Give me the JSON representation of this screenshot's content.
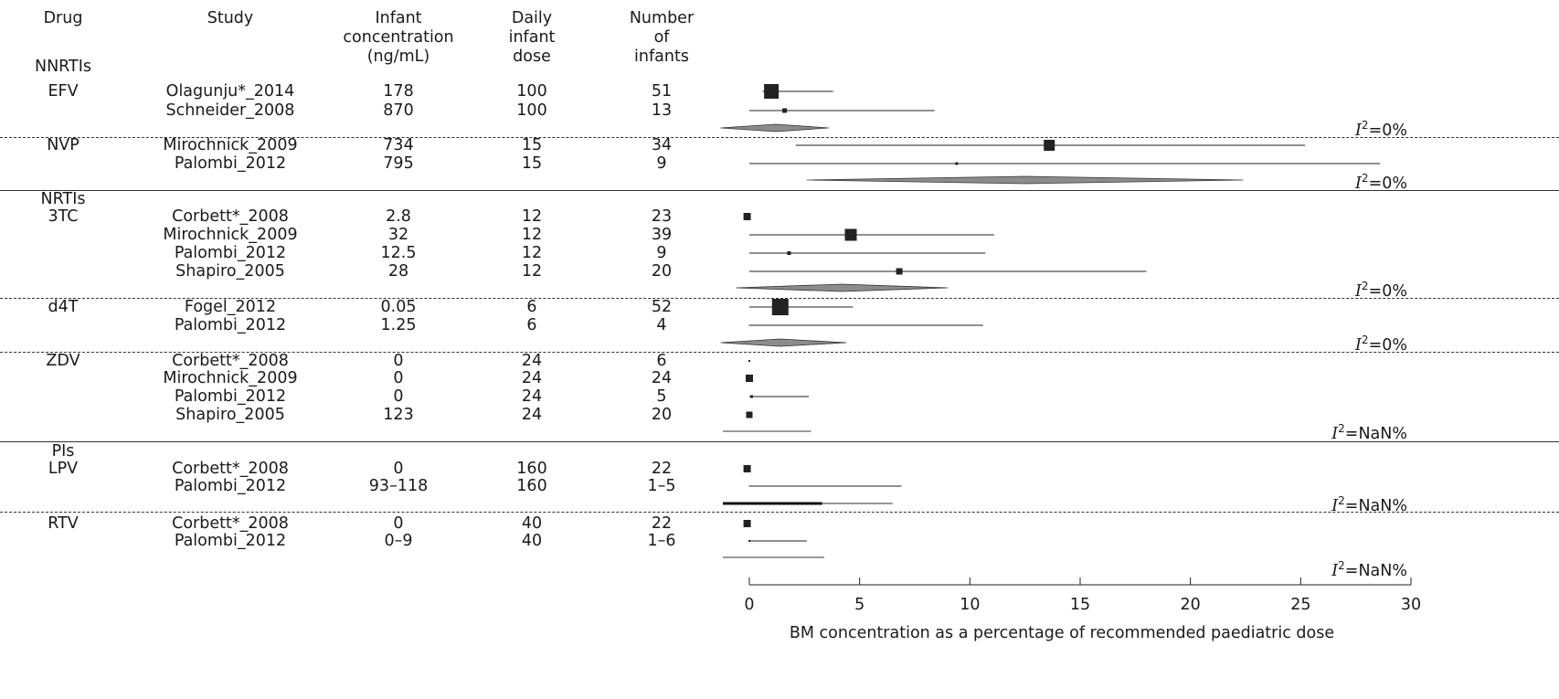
{
  "headers": {
    "drug": "Drug",
    "study": "Study",
    "conc": [
      "Infant",
      "concentration",
      "(ng/mL)"
    ],
    "dose": [
      "Daily",
      "infant",
      "dose"
    ],
    "n": [
      "Number",
      "of",
      "infants"
    ]
  },
  "groups": [
    {
      "class_label": "NNRTIs",
      "drug": "EFV",
      "i2": "=0%",
      "pooled": {
        "lo": -1.3,
        "est": 1.2,
        "hi": 3.6
      },
      "rows": [
        {
          "study": "Olagunju*_2014",
          "conc": "178",
          "dose": "100",
          "n": "51",
          "est": 1.0,
          "lo": 0.6,
          "hi": 3.8,
          "size": 16
        },
        {
          "study": "Schneider_2008",
          "conc": "870",
          "dose": "100",
          "n": "13",
          "est": 1.6,
          "lo": 0.0,
          "hi": 8.4,
          "size": 5
        }
      ]
    },
    {
      "class_label": "",
      "drug": "NVP",
      "i2": "=0%",
      "pooled": {
        "lo": 2.6,
        "est": 12.5,
        "hi": 22.4
      },
      "rows": [
        {
          "study": "Mirochnick_2009",
          "conc": "734",
          "dose": "15",
          "n": "34",
          "est": 13.6,
          "lo": 2.1,
          "hi": 25.2,
          "size": 12
        },
        {
          "study": "Palombi_2012",
          "conc": "795",
          "dose": "15",
          "n": "9",
          "est": 9.4,
          "lo": 0.0,
          "hi": 28.6,
          "size": 3
        }
      ]
    },
    {
      "class_label": "NRTIs",
      "drug": "3TC",
      "i2": "=0%",
      "pooled": {
        "lo": -0.6,
        "est": 4.2,
        "hi": 9.0
      },
      "rows": [
        {
          "study": "Corbett*_2008",
          "conc": "2.8",
          "dose": "12",
          "n": "23",
          "est": -0.1,
          "lo": -0.1,
          "hi": -0.1,
          "size": 8
        },
        {
          "study": "Mirochnick_2009",
          "conc": "32",
          "dose": "12",
          "n": "39",
          "est": 4.6,
          "lo": 0.0,
          "hi": 11.1,
          "size": 13
        },
        {
          "study": "Palombi_2012",
          "conc": "12.5",
          "dose": "12",
          "n": "9",
          "est": 1.8,
          "lo": 0.0,
          "hi": 10.7,
          "size": 4
        },
        {
          "study": "Shapiro_2005",
          "conc": "28",
          "dose": "12",
          "n": "20",
          "est": 6.8,
          "lo": 0.0,
          "hi": 18.0,
          "size": 7
        }
      ]
    },
    {
      "class_label": "",
      "drug": "d4T",
      "i2": "=0%",
      "pooled": {
        "lo": -1.3,
        "est": 1.4,
        "hi": 4.4
      },
      "rows": [
        {
          "study": "Fogel_2012",
          "conc": "0.05",
          "dose": "6",
          "n": "52",
          "est": 1.4,
          "lo": 0.0,
          "hi": 4.7,
          "size": 18
        },
        {
          "study": "Palombi_2012",
          "conc": "1.25",
          "dose": "6",
          "n": "4",
          "est": 0.0,
          "lo": 0.0,
          "hi": 10.6,
          "size": 1
        }
      ]
    },
    {
      "class_label": "",
      "drug": "ZDV",
      "i2": "=NaN%",
      "pooled_line": {
        "lo": -1.2,
        "hi": 2.8
      },
      "rows": [
        {
          "study": "Corbett*_2008",
          "conc": "0",
          "dose": "24",
          "n": "6",
          "est": 0.0,
          "lo": 0.0,
          "hi": 0.0,
          "size": 2
        },
        {
          "study": "Mirochnick_2009",
          "conc": "0",
          "dose": "24",
          "n": "24",
          "est": 0.0,
          "lo": 0.0,
          "hi": 0.0,
          "size": 8
        },
        {
          "study": "Palombi_2012",
          "conc": "0",
          "dose": "24",
          "n": "5",
          "est": 0.1,
          "lo": 0.0,
          "hi": 2.7,
          "size": 3
        },
        {
          "study": "Shapiro_2005",
          "conc": "123",
          "dose": "24",
          "n": "20",
          "est": 0.0,
          "lo": 0.0,
          "hi": 0.0,
          "size": 7
        }
      ]
    },
    {
      "class_label": "PIs",
      "drug": "LPV",
      "i2": "=NaN%",
      "pooled_line": {
        "lo": -1.2,
        "hi": 6.5
      },
      "pooled_bold": {
        "lo": -1.2,
        "hi": 3.3
      },
      "rows": [
        {
          "study": "Corbett*_2008",
          "conc": "0",
          "dose": "160",
          "n": "22",
          "est": -0.1,
          "lo": -0.1,
          "hi": -0.1,
          "size": 8
        },
        {
          "study": "Palombi_2012",
          "conc": "93–118",
          "dose": "160",
          "n": "1–5",
          "est": 0.0,
          "lo": 0.0,
          "hi": 6.9,
          "size": 1
        }
      ]
    },
    {
      "class_label": "",
      "drug": "RTV",
      "i2": "=NaN%",
      "pooled_line": {
        "lo": -1.2,
        "hi": 3.4
      },
      "rows": [
        {
          "study": "Corbett*_2008",
          "conc": "0",
          "dose": "40",
          "n": "22",
          "est": -0.1,
          "lo": -0.1,
          "hi": -0.1,
          "size": 8
        },
        {
          "study": "Palombi_2012",
          "conc": "0–9",
          "dose": "40",
          "n": "1–6",
          "est": 0.0,
          "lo": 0.0,
          "hi": 2.6,
          "size": 2
        }
      ]
    }
  ],
  "i2_symbol": "I",
  "i2_sup": "2",
  "chart_data": {
    "type": "forest",
    "xlabel": "BM concentration as a percentage of recommended paediatric dose",
    "xlim": [
      0,
      30
    ],
    "xticks": [
      0,
      5,
      10,
      15,
      20,
      25,
      30
    ],
    "colors": {
      "box": "#222222",
      "diamond": "#8c8c8c",
      "line": "#222222"
    }
  }
}
